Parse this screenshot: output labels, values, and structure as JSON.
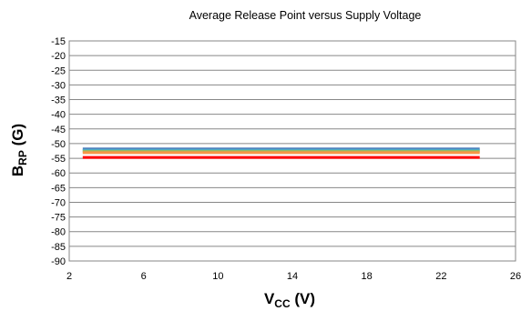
{
  "chart_data": {
    "type": "line",
    "title": "Average Release Point versus Supply Voltage",
    "xlabel": {
      "main": "V",
      "sub": "CC",
      "suffix": " (V)"
    },
    "ylabel": {
      "main": "B",
      "sub": "RP",
      "suffix": " (G)"
    },
    "xlim": [
      2,
      26
    ],
    "ylim": [
      -90,
      -15
    ],
    "xticks": [
      2,
      6,
      10,
      14,
      18,
      22,
      26
    ],
    "yticks": [
      -15,
      -20,
      -25,
      -30,
      -35,
      -40,
      -45,
      -50,
      -55,
      -60,
      -65,
      -70,
      -75,
      -80,
      -85,
      -90
    ],
    "grid": true,
    "series": [
      {
        "color": "#4f81bd",
        "x": [
          2.8,
          24
        ],
        "y": [
          -51.8,
          -51.8
        ]
      },
      {
        "color": "#4bacc6",
        "x": [
          2.8,
          24
        ],
        "y": [
          -52.3,
          -52.3
        ]
      },
      {
        "color": "#9bbb59",
        "x": [
          2.8,
          24
        ],
        "y": [
          -52.7,
          -52.7
        ]
      },
      {
        "color": "#f79646",
        "x": [
          2.8,
          24
        ],
        "y": [
          -53.1,
          -53.1
        ]
      },
      {
        "color": "#ff0000",
        "x": [
          2.8,
          24
        ],
        "y": [
          -54.7,
          -54.7
        ]
      }
    ]
  }
}
